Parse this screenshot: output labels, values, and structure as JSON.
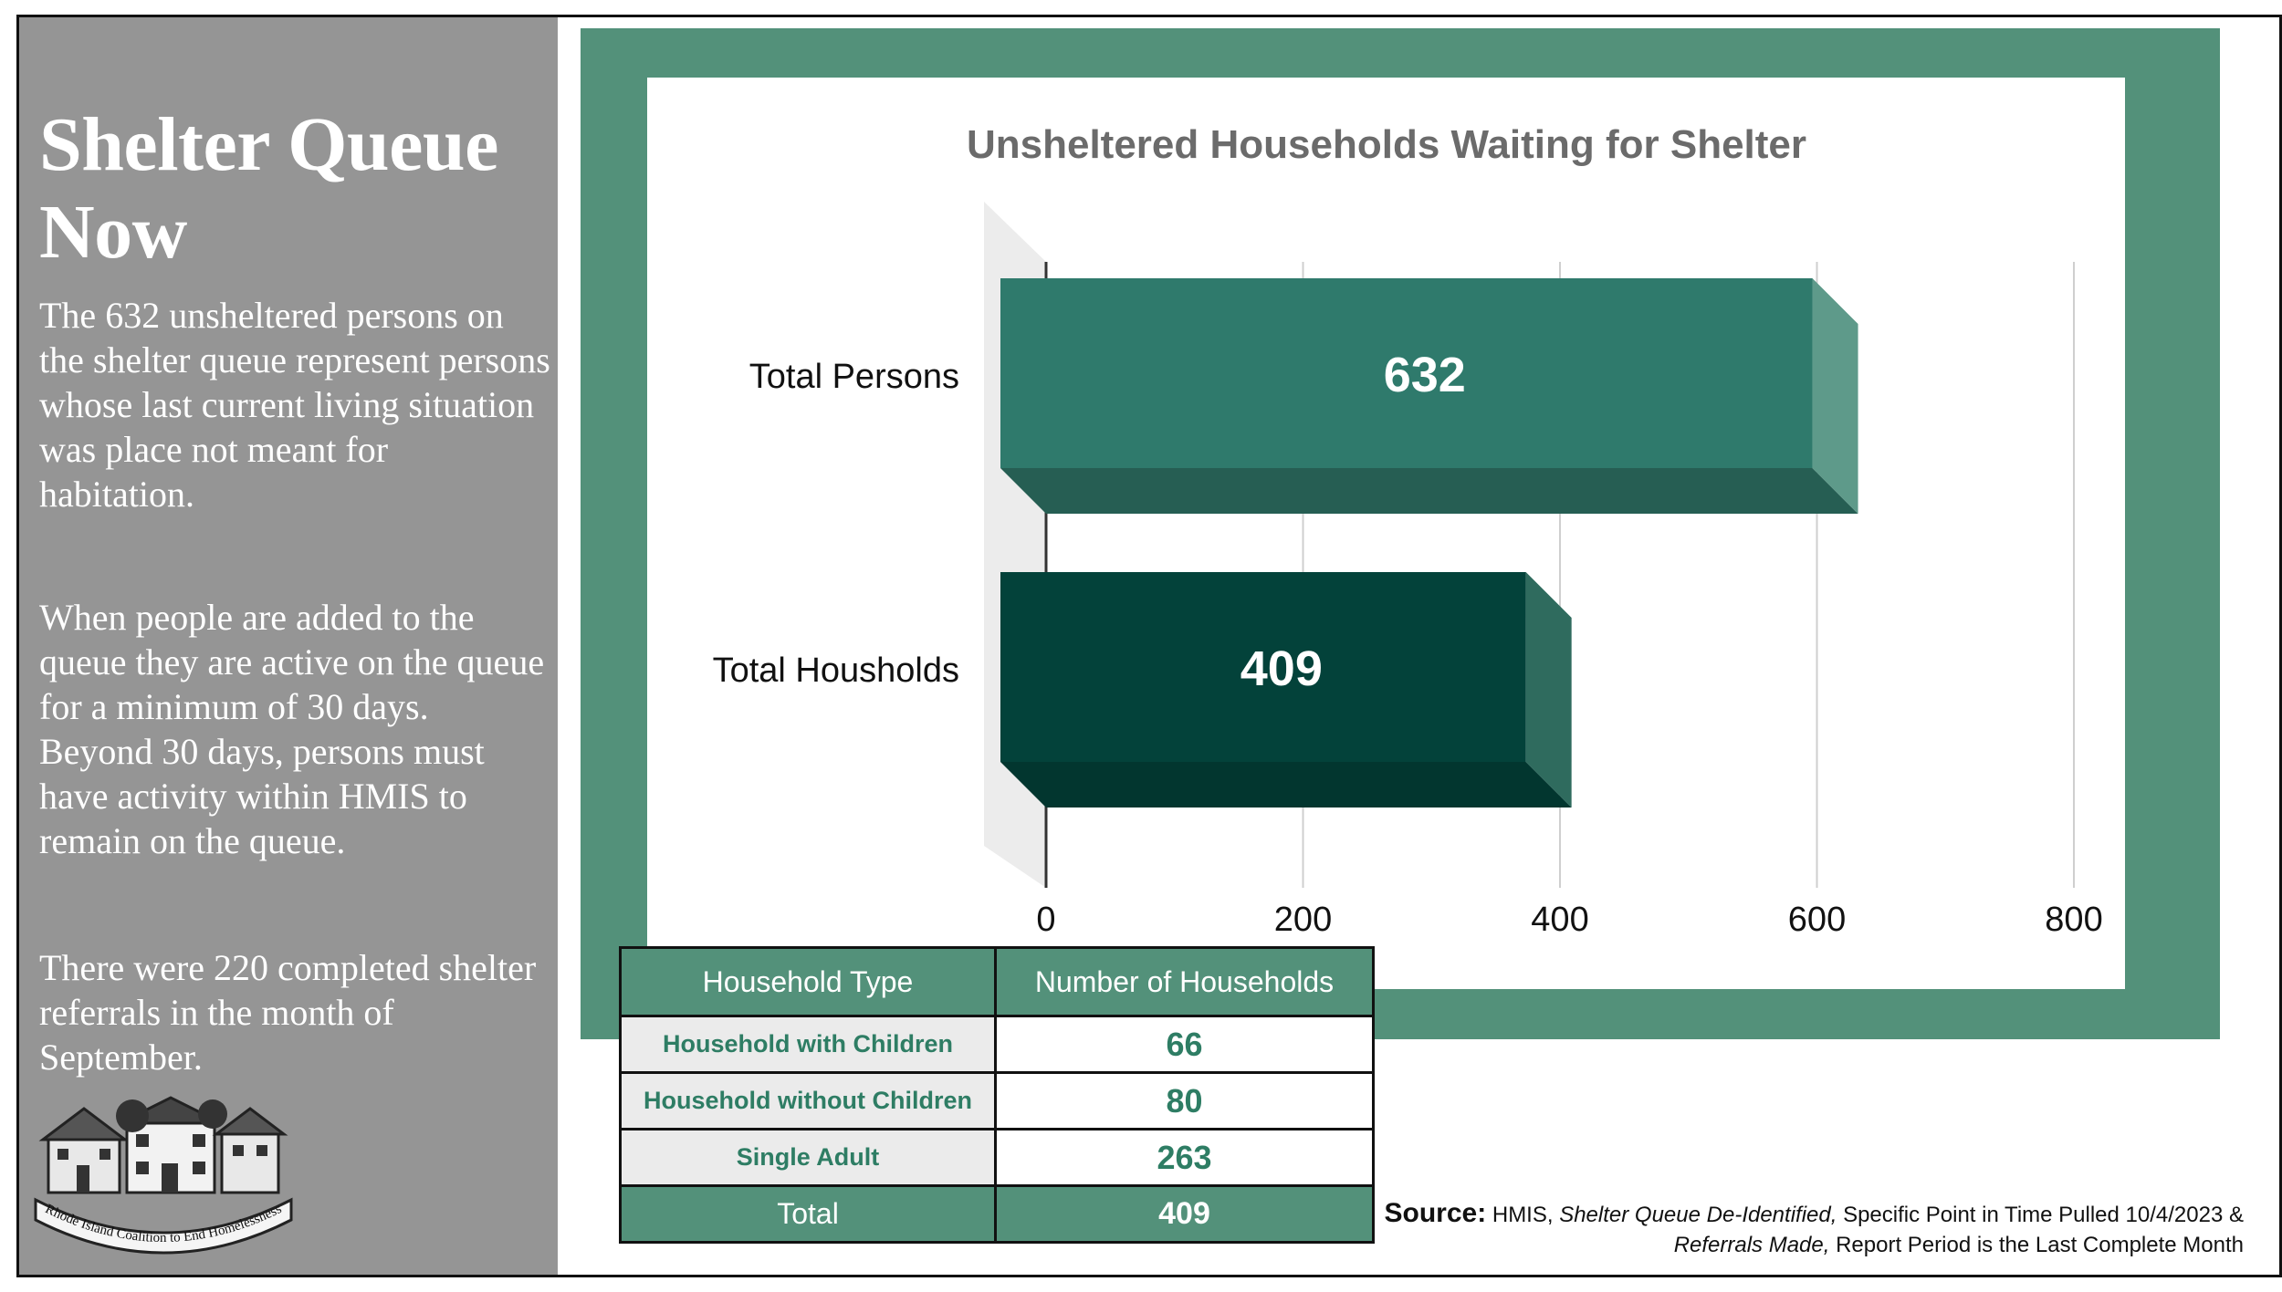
{
  "sidebar": {
    "title": "Shelter Queue Now",
    "para1": "The 632 unsheltered persons on the shelter queue represent persons whose last current living situation was place not meant for habitation.",
    "para2": "When people are added to the queue they are active on the queue for a minimum of 30 days. Beyond 30 days, persons must have activity within HMIS to remain on the queue.",
    "para3": "There were 220 completed shelter referrals in the month of September.",
    "logo_text": "Rhode Island Coalition to End Homelessness"
  },
  "colors": {
    "frame_green": "#53917a",
    "bar_persons": "#2f7a6c",
    "bar_households": "#03423a",
    "sidebar_gray": "#959595"
  },
  "chart_data": {
    "type": "bar",
    "orientation": "horizontal",
    "style": "3d",
    "title": "Unsheltered Households Waiting for Shelter",
    "categories": [
      "Total Persons",
      "Total Housholds"
    ],
    "values": [
      632,
      409
    ],
    "data_labels": [
      "632",
      "409"
    ],
    "xlim": [
      0,
      800
    ],
    "xticks": [
      0,
      200,
      400,
      600,
      800
    ],
    "xlabel": "",
    "ylabel": "",
    "grid": true,
    "legend": "none"
  },
  "table": {
    "headers": [
      "Household Type",
      "Number of Households"
    ],
    "rows": [
      {
        "type": "Household with Children",
        "count": "66"
      },
      {
        "type": "Household without Children",
        "count": "80"
      },
      {
        "type": "Single Adult",
        "count": "263"
      }
    ],
    "total": {
      "label": "Total",
      "count": "409"
    }
  },
  "source": {
    "label": "Source:",
    "part1": "HMIS,",
    "italic1": "Shelter Queue De-Identified,",
    "part2": "Specific Point in Time Pulled 10/4/2023 &",
    "italic2": "Referrals Made,",
    "part3": "Report Period is the Last Complete Month"
  }
}
